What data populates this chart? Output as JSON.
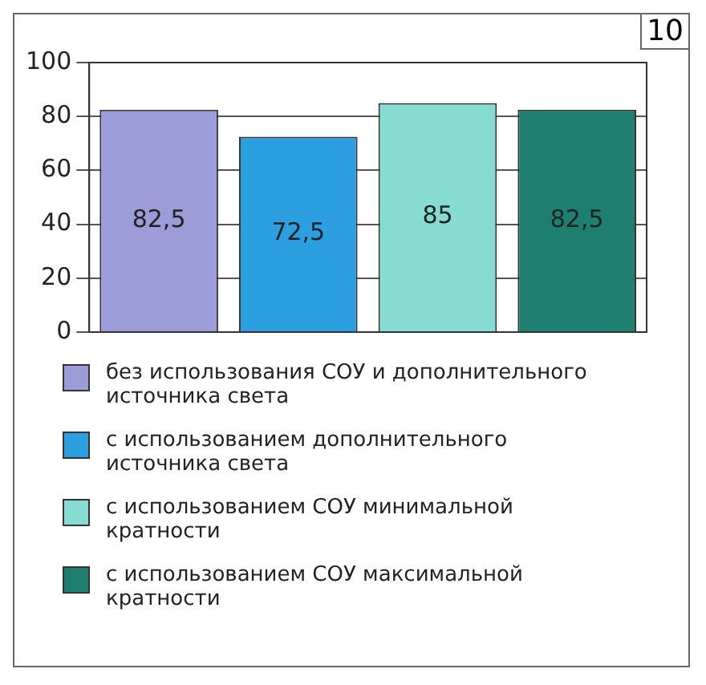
{
  "chart_data": {
    "type": "bar",
    "categories": [
      null,
      null,
      null,
      null
    ],
    "series": [
      {
        "name": "без использования СОУ и дополнительного источника света",
        "color": "#9c9cd8",
        "values": [
          82.5,
          null,
          null,
          null
        ],
        "value_labels": [
          "82,5",
          null,
          null,
          null
        ]
      },
      {
        "name": "с использованием дополнительного источника света",
        "color": "#2b9fe0",
        "values": [
          null,
          72.5,
          null,
          null
        ],
        "value_labels": [
          null,
          "72,5",
          null,
          null
        ]
      },
      {
        "name": "с использованием СОУ минимальной кратности",
        "color": "#86dbd2",
        "values": [
          null,
          null,
          85,
          null
        ],
        "value_labels": [
          null,
          null,
          "85",
          null
        ]
      },
      {
        "name": "с использованием СОУ максимальной кратности",
        "color": "#1e7f70",
        "values": [
          null,
          null,
          null,
          82.5
        ],
        "value_labels": [
          null,
          null,
          null,
          "82,5"
        ]
      }
    ],
    "ylim": [
      0,
      100
    ],
    "yticks": [
      0,
      20,
      40,
      60,
      80,
      100
    ],
    "grid": "y",
    "legend": "bottom",
    "annotations": [
      "10"
    ]
  }
}
